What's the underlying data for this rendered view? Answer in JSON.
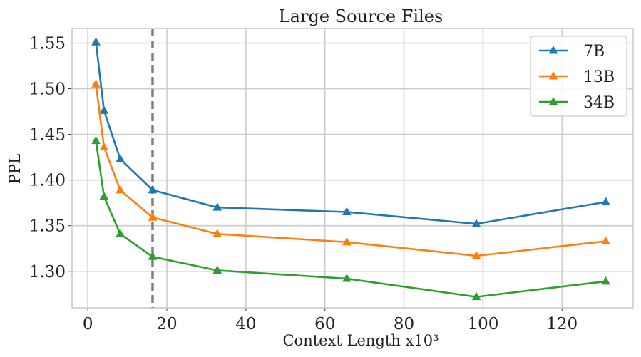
{
  "chart_data": {
    "type": "line",
    "title": "Large Source Files",
    "xlabel": "Context Length x10³",
    "ylabel": "PPL",
    "xlim": [
      -4,
      138
    ],
    "ylim": [
      1.26,
      1.566
    ],
    "x_ticks": [
      0,
      20,
      40,
      60,
      80,
      100,
      120
    ],
    "x_tick_labels": [
      "0",
      "20",
      "40",
      "60",
      "80",
      "100",
      "120"
    ],
    "y_ticks": [
      1.3,
      1.35,
      1.4,
      1.45,
      1.5,
      1.55
    ],
    "y_tick_labels": [
      "1.30",
      "1.35",
      "1.40",
      "1.45",
      "1.50",
      "1.55"
    ],
    "grid": true,
    "legend_position": "top-right",
    "vline_x": 16.384,
    "vline_color": "#808080",
    "x": [
      2.048,
      4.096,
      8.192,
      16.384,
      32.768,
      65.536,
      98.304,
      131.072
    ],
    "series": [
      {
        "name": "7B",
        "color": "#1f77b4",
        "values": [
          1.551,
          1.476,
          1.423,
          1.389,
          1.37,
          1.365,
          1.352,
          1.376
        ]
      },
      {
        "name": "13B",
        "color": "#ff7f0e",
        "values": [
          1.505,
          1.436,
          1.389,
          1.359,
          1.341,
          1.332,
          1.317,
          1.333
        ]
      },
      {
        "name": "34B",
        "color": "#2ca02c",
        "values": [
          1.443,
          1.382,
          1.341,
          1.316,
          1.301,
          1.292,
          1.272,
          1.289
        ]
      }
    ]
  }
}
